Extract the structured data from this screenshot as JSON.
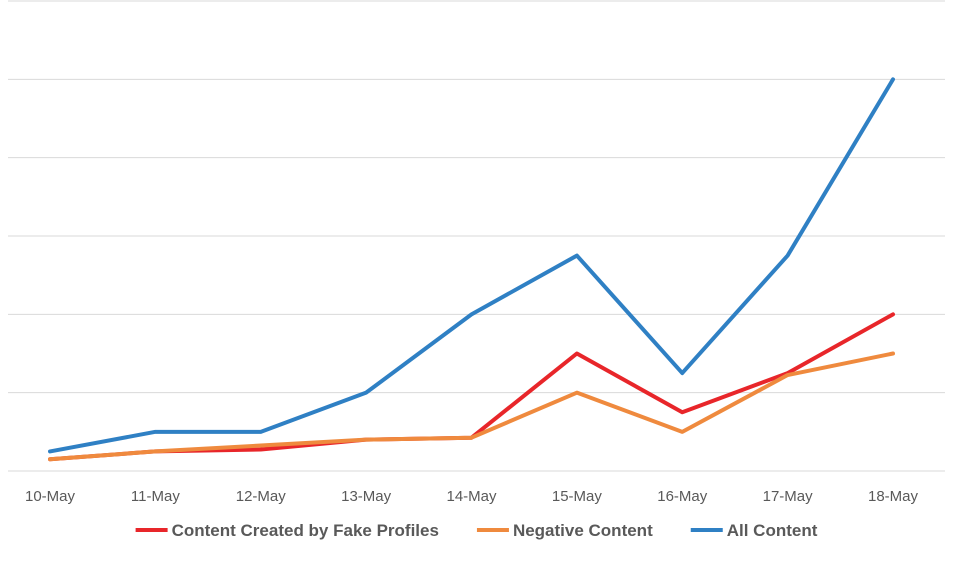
{
  "chart_data": {
    "type": "line",
    "title": "",
    "xlabel": "",
    "ylabel": "",
    "categories": [
      "10-May",
      "11-May",
      "12-May",
      "13-May",
      "14-May",
      "15-May",
      "16-May",
      "17-May",
      "18-May"
    ],
    "ylim": [
      0,
      12
    ],
    "y_tick_labels_shown": false,
    "grid": true,
    "legend": "bottom",
    "series": [
      {
        "name": "Content Created by Fake Profiles",
        "color": "#e8262a",
        "values": [
          0.3,
          0.5,
          0.55,
          0.8,
          0.85,
          3.0,
          1.5,
          2.5,
          4.0
        ]
      },
      {
        "name": "Negative Content",
        "color": "#ef8a3e",
        "values": [
          0.3,
          0.5,
          0.65,
          0.8,
          0.85,
          2.0,
          1.0,
          2.45,
          3.0
        ]
      },
      {
        "name": "All Content",
        "color": "#2f80c4",
        "values": [
          0.5,
          1.0,
          1.0,
          2.0,
          4.0,
          5.5,
          2.5,
          5.5,
          10.0
        ]
      }
    ]
  }
}
